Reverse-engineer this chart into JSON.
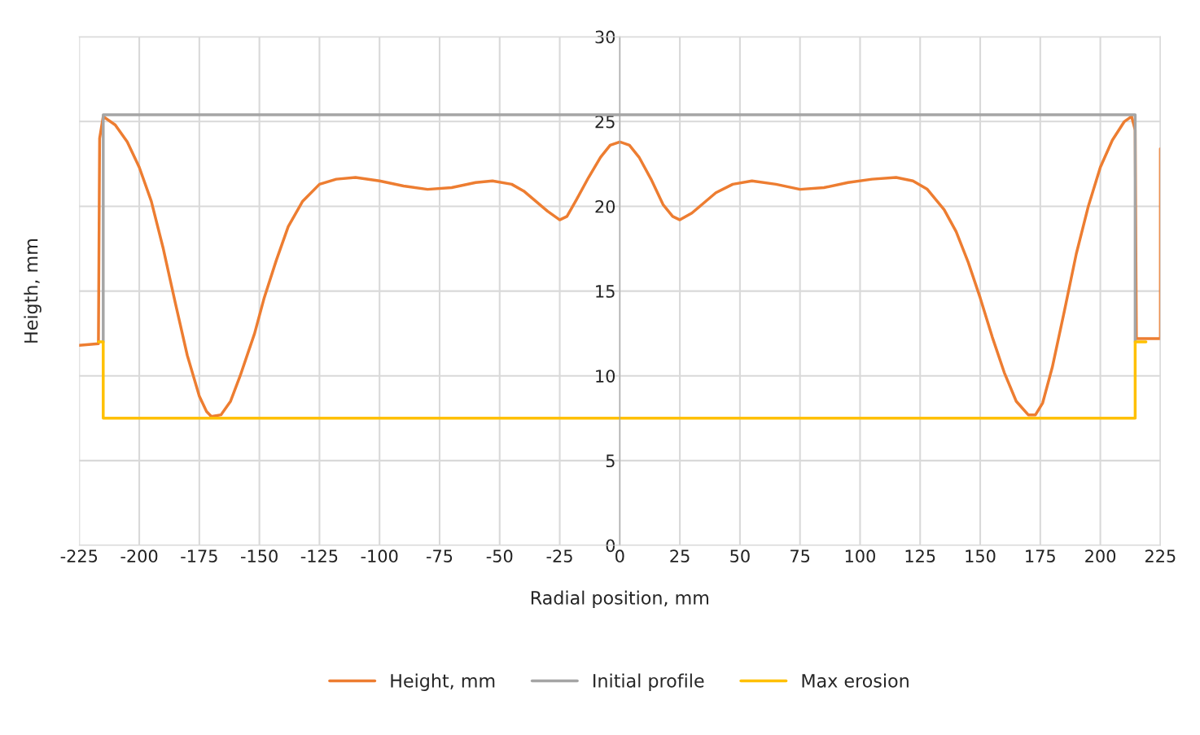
{
  "chart_data": {
    "type": "line",
    "xlabel": "Radial position, mm",
    "ylabel": "Heigth, mm",
    "xlim": [
      -225,
      225
    ],
    "xticks": [
      -225,
      -200,
      -175,
      -150,
      -125,
      -100,
      -75,
      -50,
      -25,
      0,
      25,
      50,
      75,
      100,
      125,
      150,
      175,
      200,
      225
    ],
    "ylim": [
      0,
      30
    ],
    "yticks": [
      0,
      5,
      10,
      15,
      20,
      25,
      30
    ],
    "grid": true,
    "legend": "bottom",
    "marker": "none",
    "line_style": "solid",
    "series": [
      {
        "name": "Height, mm",
        "color": "#ed7d31",
        "x": [
          -225,
          -217,
          -216.5,
          -215,
          -210,
          -205,
          -200,
          -195,
          -190,
          -185,
          -180,
          -175,
          -172,
          -170,
          -166,
          -162,
          -158,
          -152,
          -148,
          -143,
          -138,
          -132,
          -125,
          -118,
          -110,
          -100,
          -90,
          -80,
          -70,
          -60,
          -53,
          -45,
          -40,
          -35,
          -30,
          -25,
          -22,
          -18,
          -13,
          -8,
          -4,
          0,
          4,
          8,
          13,
          18,
          22,
          25,
          30,
          35,
          40,
          47,
          55,
          65,
          75,
          85,
          95,
          105,
          115,
          122,
          128,
          135,
          140,
          145,
          150,
          155,
          160,
          165,
          170,
          173,
          176,
          180,
          185,
          190,
          195,
          200,
          205,
          210,
          213,
          214.5,
          215,
          218,
          225,
          225
        ],
        "values": [
          11.8,
          11.9,
          24,
          25.3,
          24.8,
          23.8,
          22.3,
          20.3,
          17.5,
          14.3,
          11.2,
          8.8,
          7.9,
          7.6,
          7.7,
          8.5,
          10,
          12.5,
          14.6,
          16.8,
          18.8,
          20.3,
          21.3,
          21.6,
          21.7,
          21.5,
          21.2,
          21.0,
          21.1,
          21.4,
          21.5,
          21.3,
          20.9,
          20.3,
          19.7,
          19.2,
          19.4,
          20.4,
          21.7,
          22.9,
          23.6,
          23.8,
          23.6,
          22.9,
          21.6,
          20.1,
          19.4,
          19.2,
          19.6,
          20.2,
          20.8,
          21.3,
          21.5,
          21.3,
          21.0,
          21.1,
          21.4,
          21.6,
          21.7,
          21.5,
          21.0,
          19.8,
          18.5,
          16.7,
          14.6,
          12.3,
          10.2,
          8.5,
          7.7,
          7.7,
          8.4,
          10.5,
          13.8,
          17.2,
          20.0,
          22.3,
          23.9,
          25.0,
          25.3,
          24.5,
          12.2,
          12.2,
          12.2,
          23.4
        ]
      },
      {
        "name": "Initial profile",
        "color": "#a5a5a5",
        "x": [
          -215,
          -215,
          214.5,
          214.5
        ],
        "values": [
          12,
          25.4,
          25.4,
          12
        ]
      },
      {
        "name": "Max erosion",
        "color": "#ffc000",
        "x": [
          -217,
          -215,
          -215,
          214.5,
          214.5,
          219
        ],
        "values": [
          12,
          12,
          7.5,
          7.5,
          12,
          12
        ]
      }
    ]
  }
}
